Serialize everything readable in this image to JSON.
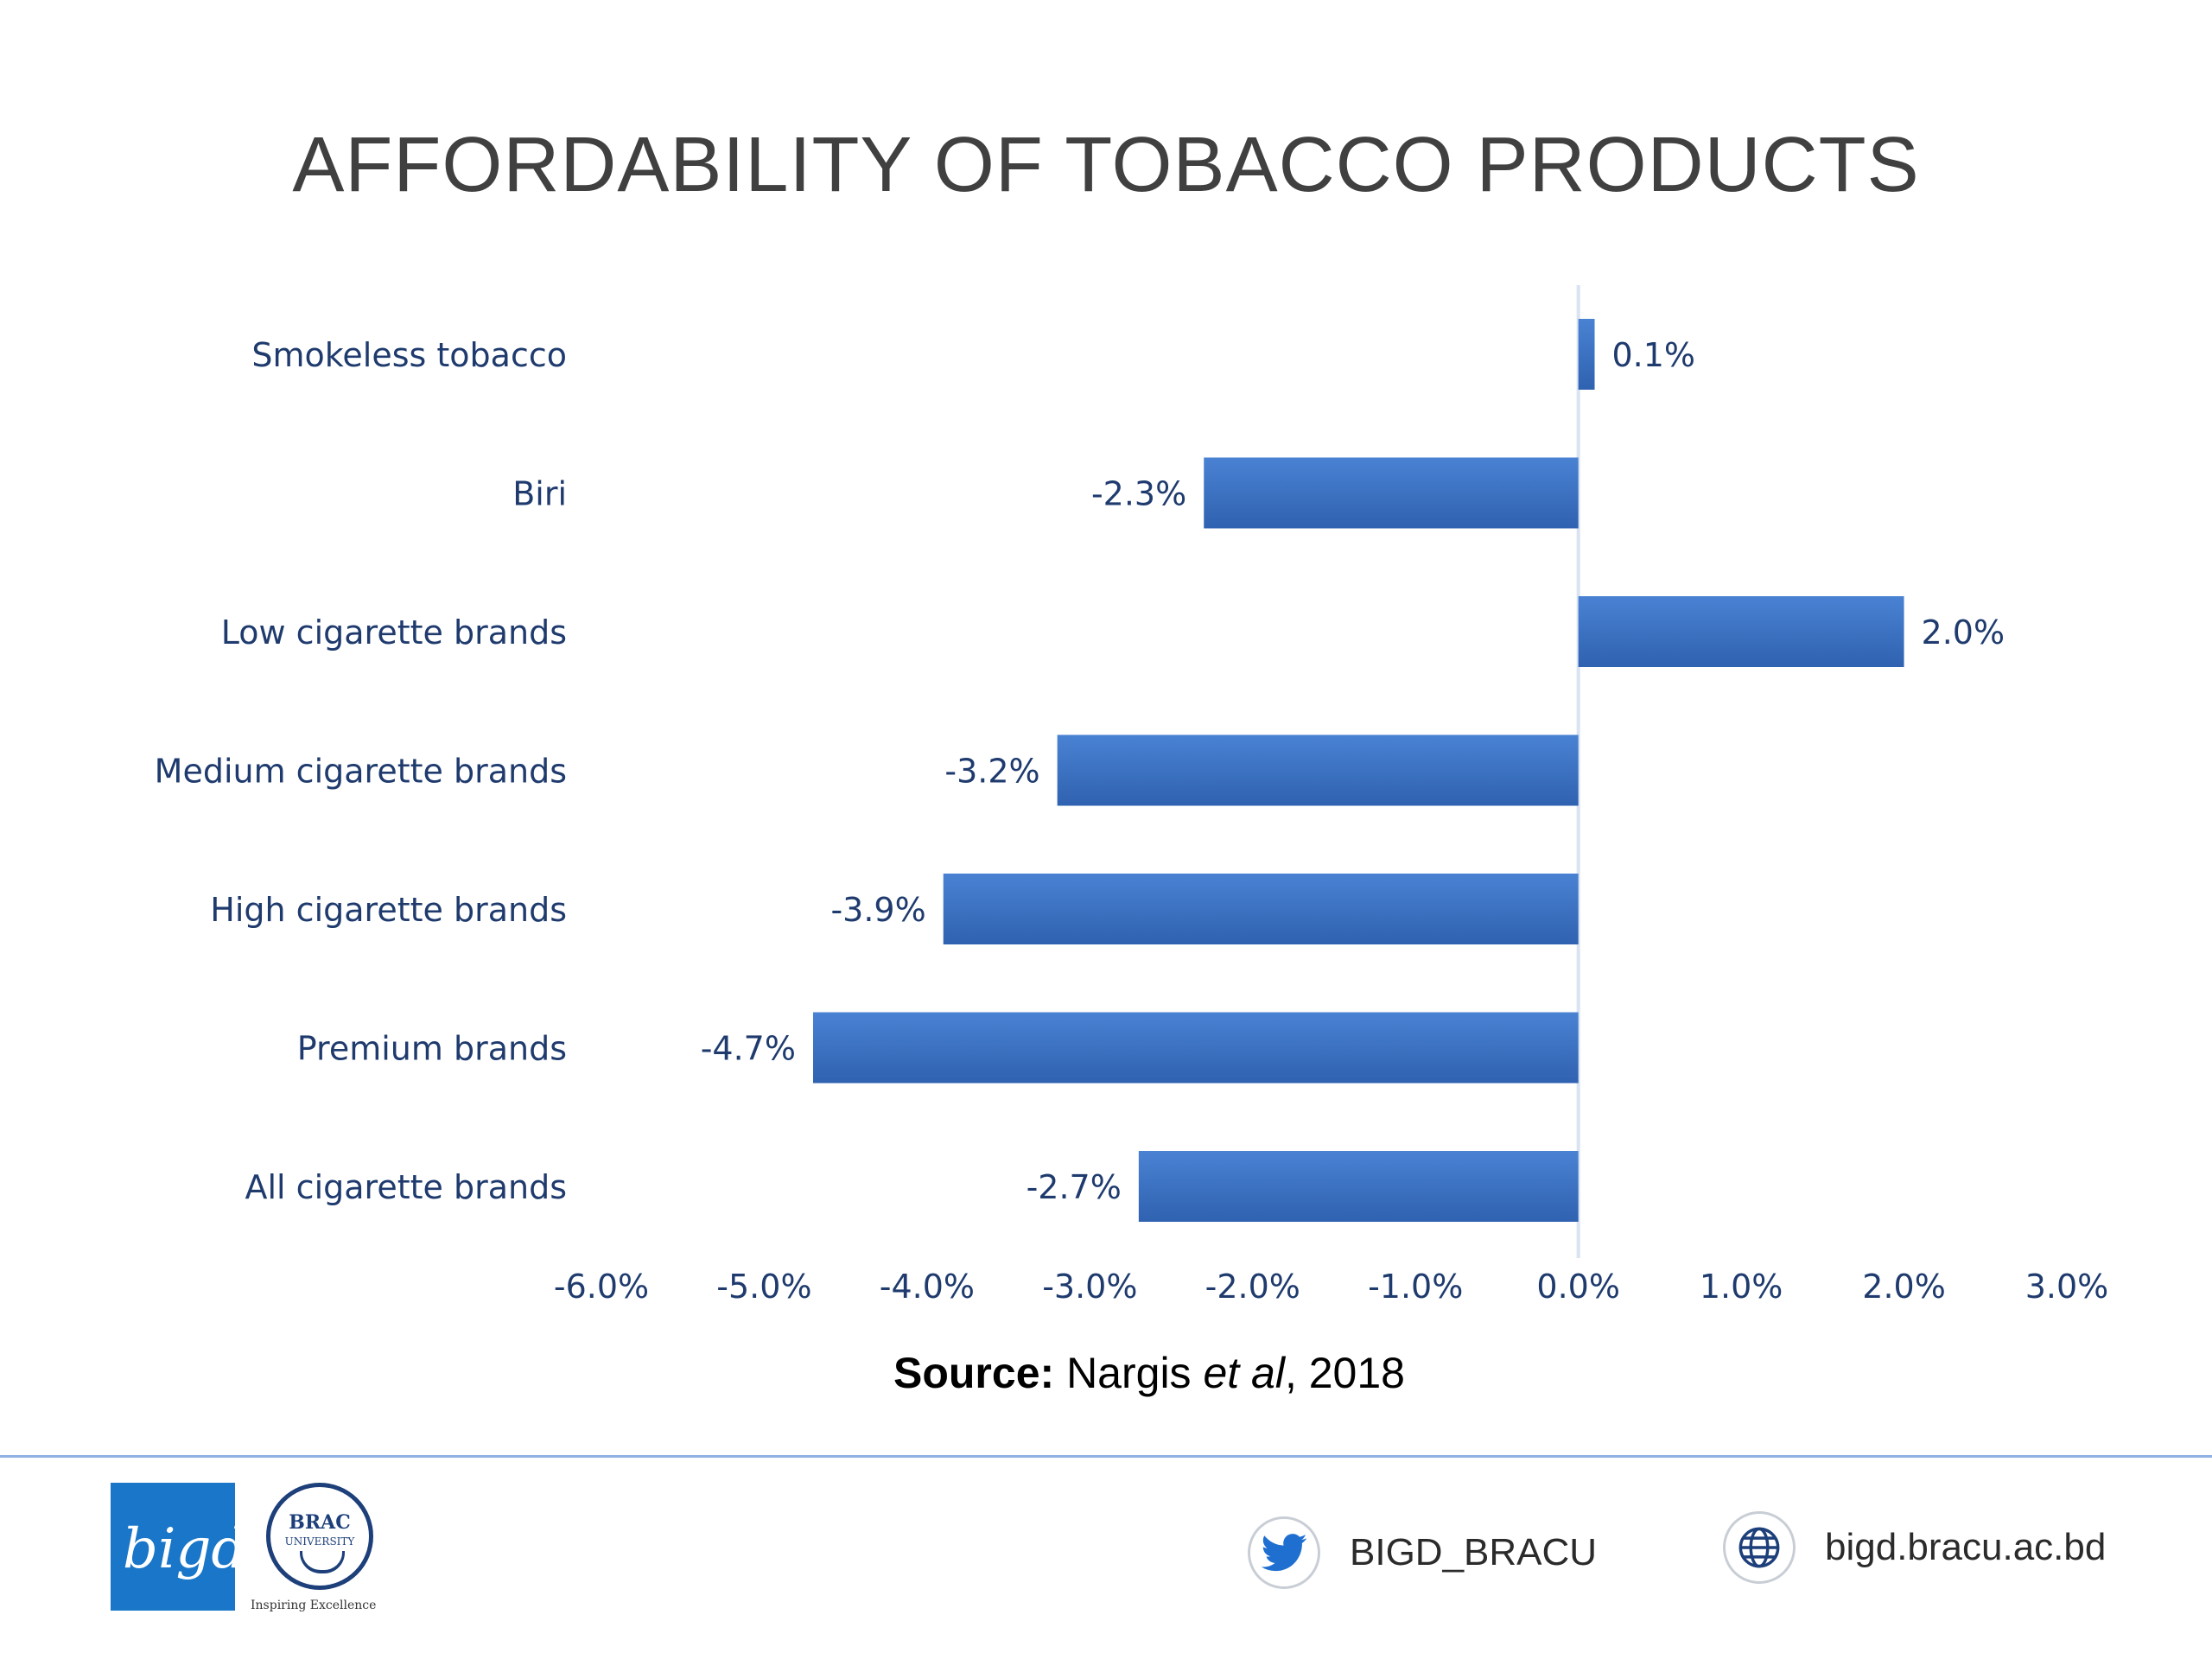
{
  "header": {
    "title": "AFFORDABILITY OF TOBACCO PRODUCTS"
  },
  "source": {
    "prefix": "Source:",
    "author": "Nargis ",
    "etal": "et al",
    "year": ", 2018"
  },
  "chart_data": {
    "type": "bar",
    "orientation": "horizontal",
    "categories": [
      "Smokeless tobacco",
      "Biri",
      "Low cigarette brands",
      "Medium cigarette brands",
      "High cigarette brands",
      "Premium brands",
      "All cigarette brands"
    ],
    "values": [
      0.1,
      -2.3,
      2.0,
      -3.2,
      -3.9,
      -4.7,
      -2.7
    ],
    "value_labels": [
      "0.1%",
      "-2.3%",
      "2.0%",
      "-3.2%",
      "-3.9%",
      "-4.7%",
      "-2.7%"
    ],
    "xlim": [
      -6.0,
      3.0
    ],
    "xticks": [
      -6,
      -5,
      -4,
      -3,
      -2,
      -1,
      0,
      1,
      2,
      3
    ],
    "xtick_labels": [
      "-6.0%",
      "-5.0%",
      "-4.0%",
      "-3.0%",
      "-2.0%",
      "-1.0%",
      "0.0%",
      "1.0%",
      "2.0%",
      "3.0%"
    ],
    "grid": false,
    "legend": "none",
    "colors": {
      "bar": "#3a6fbf",
      "bar_light": "#4a80d0",
      "label": "#1f3b6e",
      "zero_line": "#d9e3f3"
    }
  },
  "footer": {
    "bigd_logo_text": "bigd",
    "brac_logo_line1": "BRAC",
    "brac_logo_line2": "UNIVERSITY",
    "brac_tagline": "Inspiring Excellence",
    "twitter_icon": "twitter-icon",
    "twitter_handle": "BIGD_BRACU",
    "web_icon": "globe-icon",
    "website": "bigd.bracu.ac.bd"
  }
}
